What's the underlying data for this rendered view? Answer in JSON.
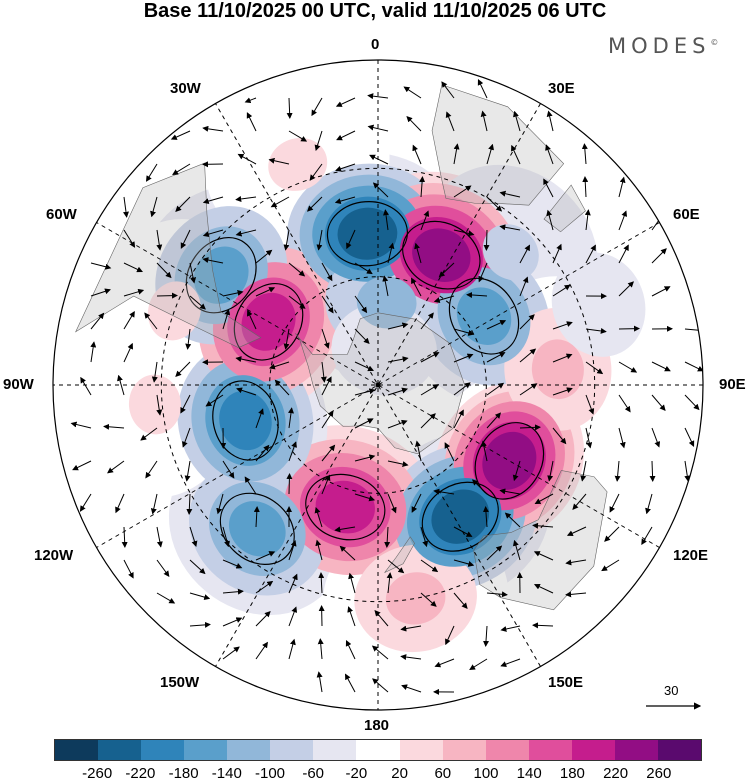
{
  "title": "Base 11/10/2025 00 UTC, valid 11/10/2025 06 UTC",
  "logo": "MODES",
  "logo_mark": "©",
  "longitude_labels": {
    "n0": "0",
    "e30": "30E",
    "e60": "60E",
    "e90": "90E",
    "e120": "120E",
    "e150": "150E",
    "s180": "180",
    "w150": "150W",
    "w120": "120W",
    "w90": "90W",
    "w60": "60W",
    "w30": "30W"
  },
  "reference_vector": {
    "label": "30"
  },
  "colorbar": {
    "colors": [
      "#0d3a5c",
      "#16618f",
      "#2f84ba",
      "#5a9fcb",
      "#91b7d9",
      "#c4cfe6",
      "#e6e6f1",
      "#ffffff",
      "#fbd9de",
      "#f7b5c2",
      "#ef86ab",
      "#e04e9c",
      "#c51d8d",
      "#920d84",
      "#5a0a6e"
    ],
    "labels": [
      "-260",
      "-220",
      "-180",
      "-140",
      "-100",
      "-60",
      "-20",
      "20",
      "60",
      "100",
      "140",
      "180",
      "220",
      "260"
    ]
  },
  "anomaly_centers": [
    {
      "lon": -4,
      "lat": -48,
      "value": -230
    },
    {
      "lon": 6,
      "lat": -67,
      "value": -110
    },
    {
      "lon": 26,
      "lat": -50,
      "value": 240
    },
    {
      "lon": 57,
      "lat": -55,
      "value": -150
    },
    {
      "lon": 45,
      "lat": -38,
      "value": -60
    },
    {
      "lon": 85,
      "lat": -40,
      "value": 110
    },
    {
      "lon": 70,
      "lat": -25,
      "value": -40
    },
    {
      "lon": 120,
      "lat": -48,
      "value": 260
    },
    {
      "lon": 148,
      "lat": -47,
      "value": -230
    },
    {
      "lon": -165,
      "lat": -55,
      "value": 200
    },
    {
      "lon": -140,
      "lat": -38,
      "value": -150
    },
    {
      "lon": -105,
      "lat": -52,
      "value": -170
    },
    {
      "lon": -60,
      "lat": -55,
      "value": 200
    },
    {
      "lon": -55,
      "lat": -37,
      "value": -130
    },
    {
      "lon": -70,
      "lat": -30,
      "value": 60
    },
    {
      "lon": -95,
      "lat": -28,
      "value": 60
    },
    {
      "lon": -20,
      "lat": -25,
      "value": 60
    },
    {
      "lon": 170,
      "lat": -30,
      "value": 90
    },
    {
      "lon": 10,
      "lat": -80,
      "value": -30
    }
  ]
}
